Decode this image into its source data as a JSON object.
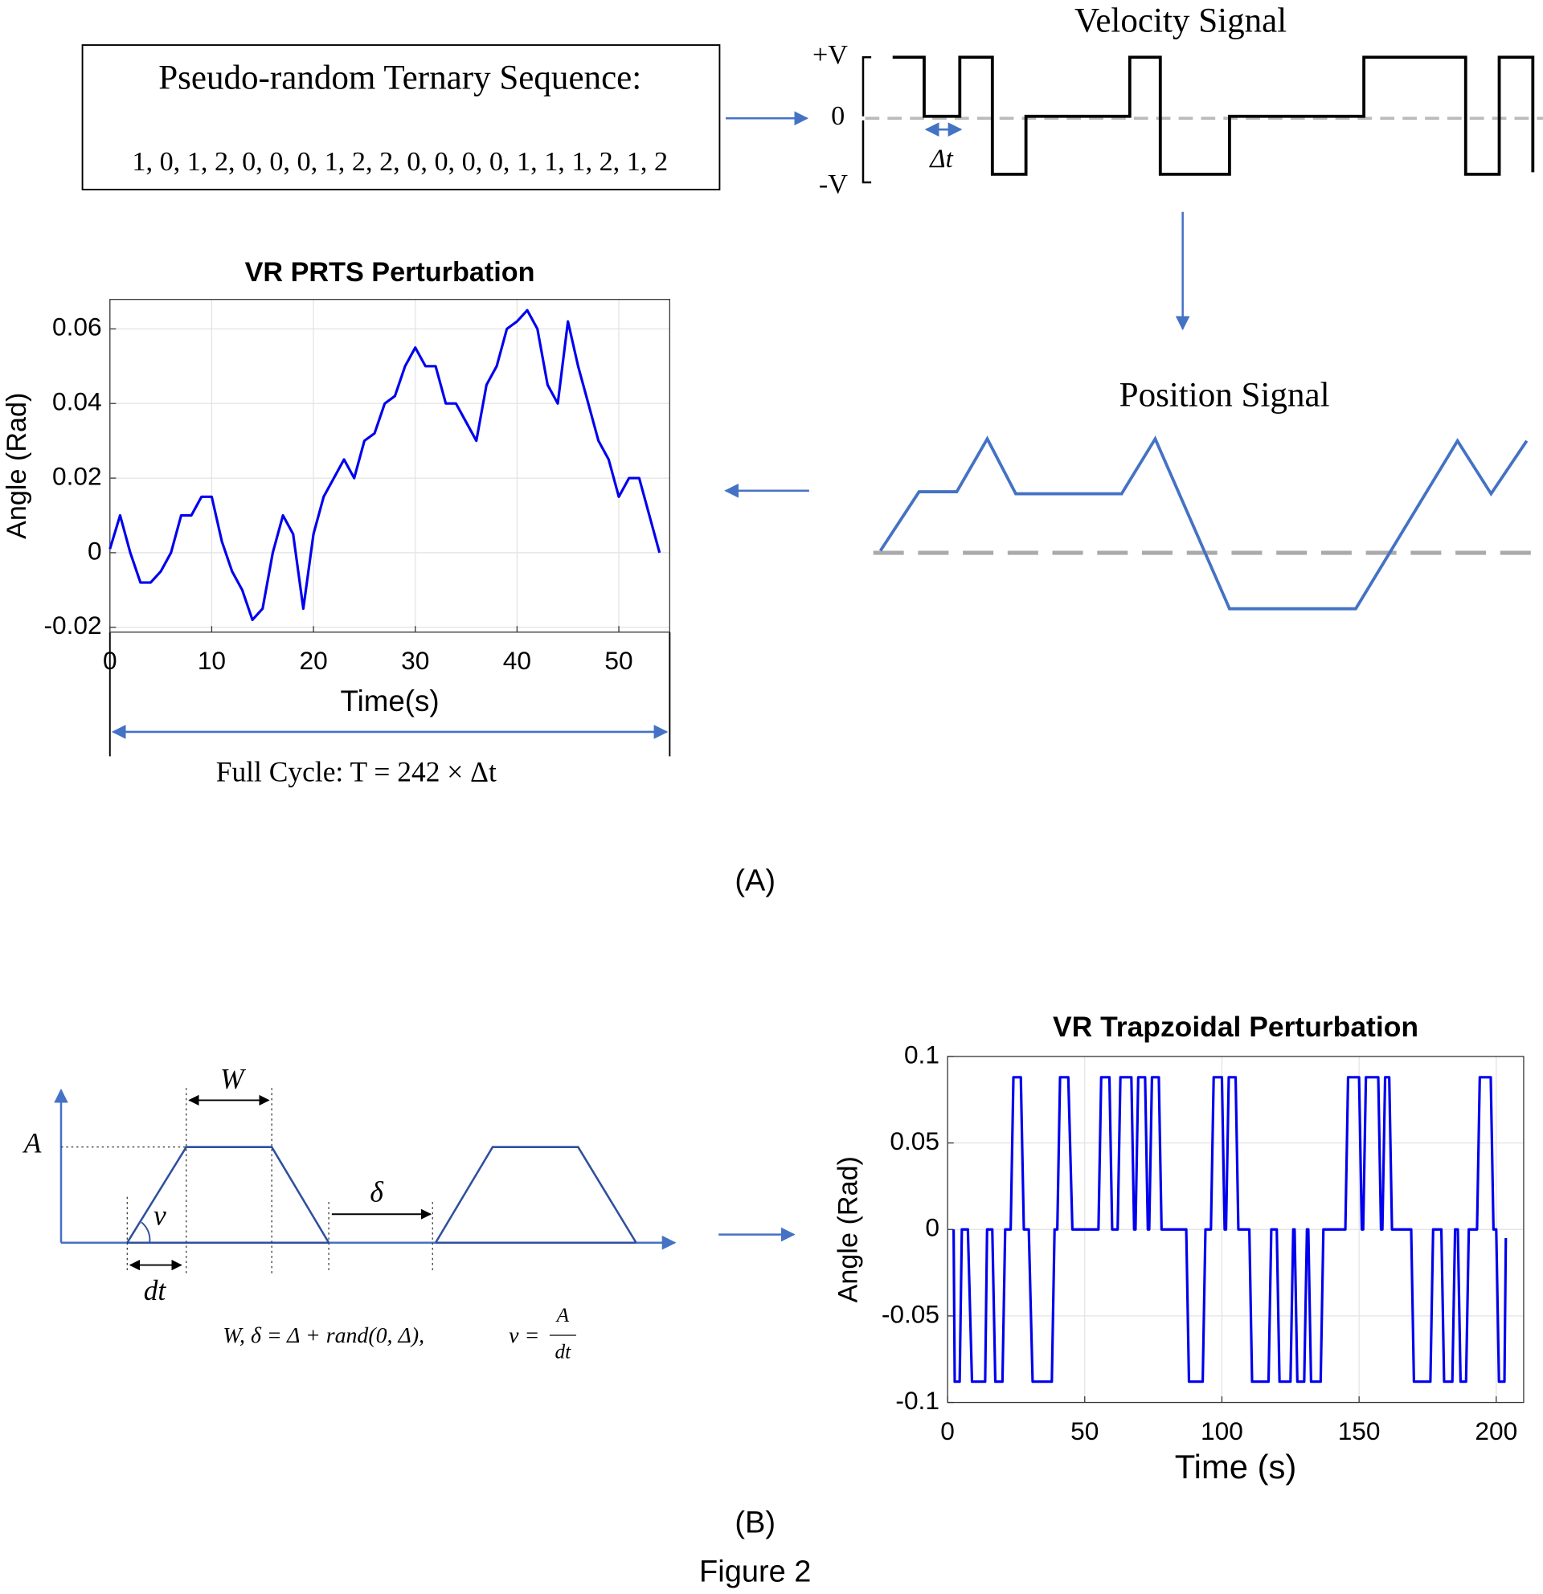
{
  "diagram": {
    "sequence_title": "Pseudo-random Ternary Sequence:",
    "sequence": "1, 0, 1, 2, 0, 0, 0, 1, 2, 2, 0, 0, 0, 0, 1, 1, 1, 2, 1, 2",
    "velocity_title": "Velocity Signal",
    "velocity_plus": "+V",
    "velocity_zero": "0",
    "velocity_minus": "-V",
    "dt_label": "Δt",
    "position_title": "Position Signal",
    "full_cycle": "Full Cycle:  T = 242 × Δt",
    "panel_a": "(A)",
    "trap_w": "W",
    "trap_a": "A",
    "trap_v": "v",
    "trap_delta": "δ",
    "trap_dt": "dt",
    "formula": "W, δ = Δ + rand(0, Δ),",
    "formula_v": "v =",
    "formula_num": "A",
    "formula_den": "dt",
    "panel_b": "(B)",
    "figure": "Figure 2"
  },
  "chart_data": [
    {
      "type": "line",
      "title": "VR PRTS Perturbation",
      "x_label": "Time(s)",
      "y_label": "Angle (Rad)",
      "color": "#0000ee",
      "grid": true,
      "xlim": [
        0,
        55
      ],
      "xticks": [
        0,
        10,
        20,
        30,
        40,
        50
      ],
      "ylim": [
        -0.0213,
        0.0679
      ],
      "yticks": [
        -0.02,
        0,
        0.02,
        0.04,
        0.06
      ],
      "x": [
        0,
        1,
        2,
        3,
        4,
        5,
        6,
        7,
        8,
        9,
        10,
        11,
        12,
        13,
        14,
        15,
        16,
        17,
        18,
        19,
        20,
        21,
        22,
        23,
        24,
        25,
        26,
        27,
        28,
        29,
        30,
        31,
        32,
        33,
        34,
        35,
        36,
        37,
        38,
        39,
        40,
        41,
        42,
        43,
        44,
        45,
        46,
        47,
        48,
        49,
        50,
        51,
        52,
        53,
        54
      ],
      "values": [
        0.001,
        0.01,
        0.0,
        -0.008,
        -0.008,
        -0.005,
        0.0,
        0.01,
        0.01,
        0.015,
        0.015,
        0.003,
        -0.005,
        -0.01,
        -0.018,
        -0.015,
        0.0,
        0.01,
        0.005,
        -0.015,
        0.005,
        0.015,
        0.02,
        0.025,
        0.02,
        0.03,
        0.032,
        0.04,
        0.042,
        0.05,
        0.055,
        0.05,
        0.05,
        0.04,
        0.04,
        0.035,
        0.03,
        0.045,
        0.05,
        0.06,
        0.062,
        0.065,
        0.06,
        0.045,
        0.04,
        0.062,
        0.05,
        0.04,
        0.03,
        0.025,
        0.015,
        0.02,
        0.02,
        0.01,
        0.0
      ]
    },
    {
      "type": "line",
      "title": "VR Trapzoidal Perturbation",
      "x_label": "Time (s)",
      "y_label": "Angle (Rad)",
      "color": "#0000ee",
      "grid": true,
      "xlim": [
        0,
        210
      ],
      "xticks": [
        0,
        50,
        100,
        150,
        200
      ],
      "ylim": [
        -0.1,
        0.1
      ],
      "yticks": [
        -0.1,
        -0.05,
        0,
        0.05,
        0.1
      ],
      "x": [
        2.2,
        2.6,
        4.4,
        5.2,
        7.4,
        8.9,
        13.7,
        14.4,
        16.3,
        17.4,
        20,
        21,
        23,
        24,
        26.7,
        27.8,
        29.6,
        31,
        38,
        39,
        40,
        41,
        44,
        45.5,
        55,
        56,
        59,
        60,
        62,
        63,
        67,
        68,
        68.5,
        69.5,
        72,
        73,
        73.5,
        74.5,
        77,
        78,
        87,
        88,
        93,
        94,
        96,
        97,
        100,
        101,
        101.5,
        102.5,
        105,
        106,
        110,
        111,
        117,
        118,
        120,
        121,
        125,
        126,
        126.5,
        127.5,
        130,
        131,
        131.5,
        132.5,
        136,
        137,
        145,
        146,
        150,
        151,
        151.5,
        152.5,
        157,
        158,
        158.5,
        159.5,
        161,
        162,
        169,
        170,
        176,
        177,
        180,
        181,
        184,
        185,
        186,
        187,
        189,
        190,
        193,
        194,
        198,
        199,
        200,
        201,
        203,
        203.5
      ],
      "values": [
        0,
        -0.088,
        -0.088,
        0,
        0,
        -0.088,
        -0.088,
        0,
        0,
        -0.088,
        -0.088,
        0,
        0,
        0.088,
        0.088,
        0,
        0,
        -0.088,
        -0.088,
        0,
        0,
        0.088,
        0.088,
        0,
        0,
        0.088,
        0.088,
        0,
        0,
        0.088,
        0.088,
        0,
        0,
        0.088,
        0.088,
        0,
        0,
        0.088,
        0.088,
        0,
        0,
        -0.088,
        -0.088,
        0,
        0,
        0.088,
        0.088,
        0,
        0,
        0.088,
        0.088,
        0,
        0,
        -0.088,
        -0.088,
        0,
        0,
        -0.088,
        -0.088,
        0,
        0,
        -0.088,
        -0.088,
        0,
        0,
        -0.088,
        -0.088,
        0,
        0,
        0.088,
        0.088,
        0,
        0,
        0.088,
        0.088,
        0,
        0,
        0.088,
        0.088,
        0,
        0,
        -0.088,
        -0.088,
        0,
        0,
        -0.088,
        -0.088,
        0,
        0,
        -0.088,
        -0.088,
        0,
        0,
        0.088,
        0.088,
        0,
        0,
        -0.088,
        -0.088,
        -0.005
      ]
    }
  ]
}
